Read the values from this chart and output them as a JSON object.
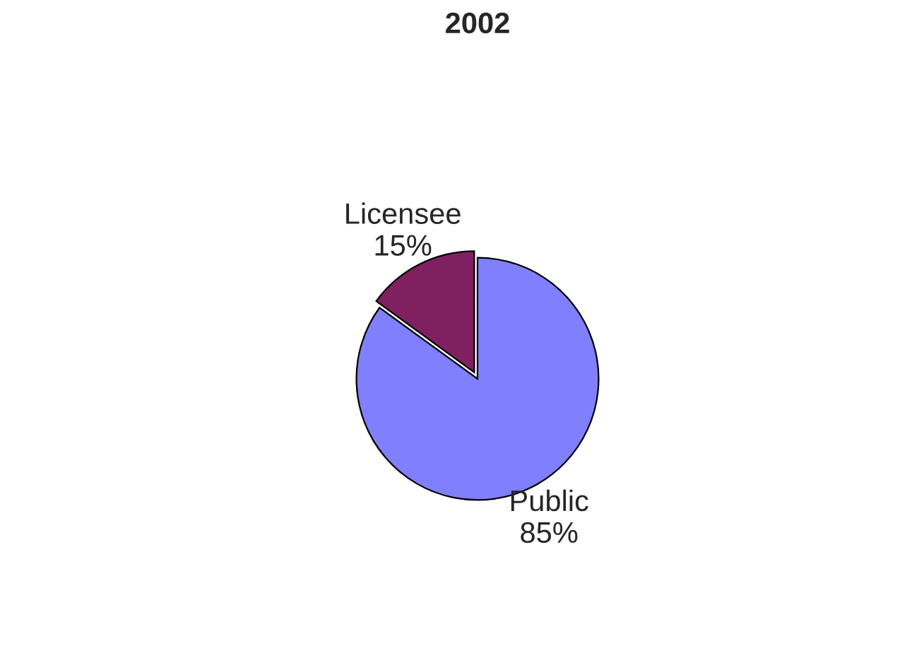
{
  "chart_data": {
    "type": "pie",
    "title": "2002",
    "categories": [
      "Licensee",
      "Public"
    ],
    "values": [
      15,
      85
    ],
    "value_labels": [
      "15%",
      "85%"
    ],
    "colors": [
      "#802060",
      "#8080ff"
    ],
    "legend": false
  }
}
